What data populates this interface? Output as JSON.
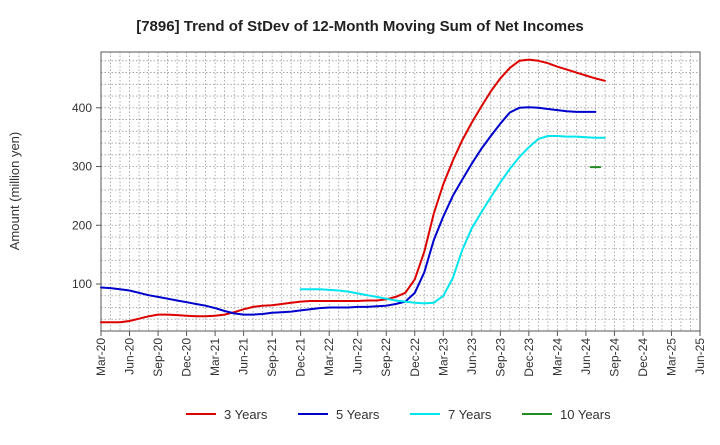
{
  "chart_data": {
    "type": "line",
    "title": "[7896]  Trend of StDev of 12-Month Moving Sum of Net Incomes",
    "xlabel": "",
    "ylabel": "Amount (million yen)",
    "ylim": [
      20,
      495
    ],
    "y_ticks": [
      100,
      200,
      300,
      400
    ],
    "x_ticks": [
      "Mar-20",
      "Jun-20",
      "Sep-20",
      "Dec-20",
      "Mar-21",
      "Jun-21",
      "Sep-21",
      "Dec-21",
      "Mar-22",
      "Jun-22",
      "Sep-22",
      "Dec-22",
      "Mar-23",
      "Jun-23",
      "Sep-23",
      "Dec-23",
      "Mar-24",
      "Jun-24",
      "Sep-24",
      "Dec-24",
      "Mar-25",
      "Jun-25"
    ],
    "grid": true,
    "legend_position": "bottom",
    "series": [
      {
        "name": "3 Years",
        "color": "#dd0000",
        "points": [
          [
            0,
            35
          ],
          [
            1,
            35
          ],
          [
            2,
            35
          ],
          [
            3,
            37
          ],
          [
            4,
            41
          ],
          [
            5,
            45
          ],
          [
            6,
            48
          ],
          [
            7,
            48
          ],
          [
            8,
            47
          ],
          [
            9,
            46
          ],
          [
            10,
            45
          ],
          [
            11,
            45
          ],
          [
            12,
            46
          ],
          [
            13,
            48
          ],
          [
            14,
            52
          ],
          [
            15,
            57
          ],
          [
            16,
            61
          ],
          [
            17,
            63
          ],
          [
            18,
            64
          ],
          [
            19,
            66
          ],
          [
            20,
            68
          ],
          [
            21,
            70
          ],
          [
            22,
            71
          ],
          [
            23,
            71
          ],
          [
            24,
            71
          ],
          [
            25,
            71
          ],
          [
            26,
            71
          ],
          [
            27,
            71
          ],
          [
            28,
            72
          ],
          [
            29,
            72
          ],
          [
            30,
            74
          ],
          [
            31,
            78
          ],
          [
            32,
            85
          ],
          [
            33,
            108
          ],
          [
            34,
            155
          ],
          [
            35,
            220
          ],
          [
            36,
            270
          ],
          [
            37,
            310
          ],
          [
            38,
            345
          ],
          [
            39,
            375
          ],
          [
            40,
            402
          ],
          [
            41,
            428
          ],
          [
            42,
            450
          ],
          [
            43,
            468
          ],
          [
            44,
            480
          ],
          [
            45,
            482
          ],
          [
            46,
            480
          ],
          [
            47,
            476
          ],
          [
            48,
            470
          ],
          [
            49,
            465
          ],
          [
            50,
            460
          ],
          [
            51,
            455
          ],
          [
            52,
            450
          ],
          [
            53,
            446
          ]
        ]
      },
      {
        "name": "5 Years",
        "color": "#0000cc",
        "points": [
          [
            0,
            94
          ],
          [
            1,
            93
          ],
          [
            2,
            91
          ],
          [
            3,
            89
          ],
          [
            4,
            85
          ],
          [
            5,
            81
          ],
          [
            6,
            78
          ],
          [
            7,
            75
          ],
          [
            8,
            72
          ],
          [
            9,
            69
          ],
          [
            10,
            66
          ],
          [
            11,
            63
          ],
          [
            12,
            59
          ],
          [
            13,
            54
          ],
          [
            14,
            50
          ],
          [
            15,
            48
          ],
          [
            16,
            48
          ],
          [
            17,
            49
          ],
          [
            18,
            51
          ],
          [
            19,
            52
          ],
          [
            20,
            53
          ],
          [
            21,
            55
          ],
          [
            22,
            57
          ],
          [
            23,
            59
          ],
          [
            24,
            60
          ],
          [
            25,
            60
          ],
          [
            26,
            60
          ],
          [
            27,
            61
          ],
          [
            28,
            61
          ],
          [
            29,
            62
          ],
          [
            30,
            63
          ],
          [
            31,
            66
          ],
          [
            32,
            70
          ],
          [
            33,
            85
          ],
          [
            34,
            120
          ],
          [
            35,
            175
          ],
          [
            36,
            215
          ],
          [
            37,
            250
          ],
          [
            38,
            278
          ],
          [
            39,
            305
          ],
          [
            40,
            330
          ],
          [
            41,
            352
          ],
          [
            42,
            373
          ],
          [
            43,
            392
          ],
          [
            44,
            400
          ],
          [
            45,
            401
          ],
          [
            46,
            400
          ],
          [
            47,
            398
          ],
          [
            48,
            396
          ],
          [
            49,
            394
          ],
          [
            50,
            393
          ],
          [
            51,
            393
          ],
          [
            52,
            393
          ]
        ]
      },
      {
        "name": "7 Years",
        "color": "#00e5ee",
        "points": [
          [
            21,
            91
          ],
          [
            22,
            91
          ],
          [
            23,
            91
          ],
          [
            24,
            90
          ],
          [
            25,
            89
          ],
          [
            26,
            87
          ],
          [
            27,
            84
          ],
          [
            28,
            81
          ],
          [
            29,
            78
          ],
          [
            30,
            75
          ],
          [
            31,
            72
          ],
          [
            32,
            70
          ],
          [
            33,
            68
          ],
          [
            34,
            67
          ],
          [
            35,
            68
          ],
          [
            36,
            80
          ],
          [
            37,
            110
          ],
          [
            38,
            158
          ],
          [
            39,
            195
          ],
          [
            40,
            222
          ],
          [
            41,
            248
          ],
          [
            42,
            273
          ],
          [
            43,
            296
          ],
          [
            44,
            316
          ],
          [
            45,
            333
          ],
          [
            46,
            347
          ],
          [
            47,
            352
          ],
          [
            48,
            352
          ],
          [
            49,
            351
          ],
          [
            50,
            351
          ],
          [
            51,
            350
          ],
          [
            52,
            349
          ],
          [
            53,
            349
          ]
        ]
      },
      {
        "name": "10 Years",
        "color": "#228b22",
        "points": [
          [
            51.5,
            299
          ],
          [
            52.5,
            299
          ]
        ]
      }
    ]
  }
}
